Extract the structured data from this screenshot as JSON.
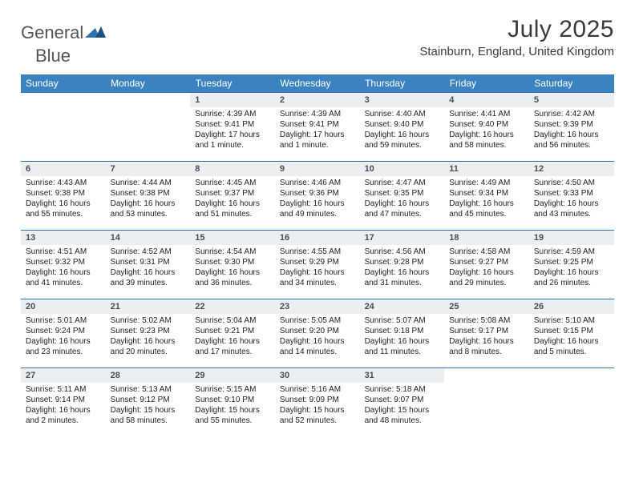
{
  "brand": {
    "name1": "General",
    "name2": "Blue"
  },
  "title": "July 2025",
  "location": "Stainburn, England, United Kingdom",
  "colors": {
    "header_bg": "#3b83c0",
    "header_text": "#ffffff",
    "daynum_bg": "#eceff2",
    "daynum_text": "#454f58",
    "rule": "#2e74b5",
    "body_text": "#222222",
    "page_bg": "#ffffff"
  },
  "font": {
    "family": "Arial",
    "title_size": 30,
    "location_size": 15,
    "header_size": 12,
    "daynum_size": 11,
    "body_size": 10
  },
  "days_of_week": [
    "Sunday",
    "Monday",
    "Tuesday",
    "Wednesday",
    "Thursday",
    "Friday",
    "Saturday"
  ],
  "weeks": [
    [
      null,
      null,
      {
        "n": "1",
        "sr": "4:39 AM",
        "ss": "9:41 PM",
        "dl": "17 hours and 1 minute."
      },
      {
        "n": "2",
        "sr": "4:39 AM",
        "ss": "9:41 PM",
        "dl": "17 hours and 1 minute."
      },
      {
        "n": "3",
        "sr": "4:40 AM",
        "ss": "9:40 PM",
        "dl": "16 hours and 59 minutes."
      },
      {
        "n": "4",
        "sr": "4:41 AM",
        "ss": "9:40 PM",
        "dl": "16 hours and 58 minutes."
      },
      {
        "n": "5",
        "sr": "4:42 AM",
        "ss": "9:39 PM",
        "dl": "16 hours and 56 minutes."
      }
    ],
    [
      {
        "n": "6",
        "sr": "4:43 AM",
        "ss": "9:38 PM",
        "dl": "16 hours and 55 minutes."
      },
      {
        "n": "7",
        "sr": "4:44 AM",
        "ss": "9:38 PM",
        "dl": "16 hours and 53 minutes."
      },
      {
        "n": "8",
        "sr": "4:45 AM",
        "ss": "9:37 PM",
        "dl": "16 hours and 51 minutes."
      },
      {
        "n": "9",
        "sr": "4:46 AM",
        "ss": "9:36 PM",
        "dl": "16 hours and 49 minutes."
      },
      {
        "n": "10",
        "sr": "4:47 AM",
        "ss": "9:35 PM",
        "dl": "16 hours and 47 minutes."
      },
      {
        "n": "11",
        "sr": "4:49 AM",
        "ss": "9:34 PM",
        "dl": "16 hours and 45 minutes."
      },
      {
        "n": "12",
        "sr": "4:50 AM",
        "ss": "9:33 PM",
        "dl": "16 hours and 43 minutes."
      }
    ],
    [
      {
        "n": "13",
        "sr": "4:51 AM",
        "ss": "9:32 PM",
        "dl": "16 hours and 41 minutes."
      },
      {
        "n": "14",
        "sr": "4:52 AM",
        "ss": "9:31 PM",
        "dl": "16 hours and 39 minutes."
      },
      {
        "n": "15",
        "sr": "4:54 AM",
        "ss": "9:30 PM",
        "dl": "16 hours and 36 minutes."
      },
      {
        "n": "16",
        "sr": "4:55 AM",
        "ss": "9:29 PM",
        "dl": "16 hours and 34 minutes."
      },
      {
        "n": "17",
        "sr": "4:56 AM",
        "ss": "9:28 PM",
        "dl": "16 hours and 31 minutes."
      },
      {
        "n": "18",
        "sr": "4:58 AM",
        "ss": "9:27 PM",
        "dl": "16 hours and 29 minutes."
      },
      {
        "n": "19",
        "sr": "4:59 AM",
        "ss": "9:25 PM",
        "dl": "16 hours and 26 minutes."
      }
    ],
    [
      {
        "n": "20",
        "sr": "5:01 AM",
        "ss": "9:24 PM",
        "dl": "16 hours and 23 minutes."
      },
      {
        "n": "21",
        "sr": "5:02 AM",
        "ss": "9:23 PM",
        "dl": "16 hours and 20 minutes."
      },
      {
        "n": "22",
        "sr": "5:04 AM",
        "ss": "9:21 PM",
        "dl": "16 hours and 17 minutes."
      },
      {
        "n": "23",
        "sr": "5:05 AM",
        "ss": "9:20 PM",
        "dl": "16 hours and 14 minutes."
      },
      {
        "n": "24",
        "sr": "5:07 AM",
        "ss": "9:18 PM",
        "dl": "16 hours and 11 minutes."
      },
      {
        "n": "25",
        "sr": "5:08 AM",
        "ss": "9:17 PM",
        "dl": "16 hours and 8 minutes."
      },
      {
        "n": "26",
        "sr": "5:10 AM",
        "ss": "9:15 PM",
        "dl": "16 hours and 5 minutes."
      }
    ],
    [
      {
        "n": "27",
        "sr": "5:11 AM",
        "ss": "9:14 PM",
        "dl": "16 hours and 2 minutes."
      },
      {
        "n": "28",
        "sr": "5:13 AM",
        "ss": "9:12 PM",
        "dl": "15 hours and 58 minutes."
      },
      {
        "n": "29",
        "sr": "5:15 AM",
        "ss": "9:10 PM",
        "dl": "15 hours and 55 minutes."
      },
      {
        "n": "30",
        "sr": "5:16 AM",
        "ss": "9:09 PM",
        "dl": "15 hours and 52 minutes."
      },
      {
        "n": "31",
        "sr": "5:18 AM",
        "ss": "9:07 PM",
        "dl": "15 hours and 48 minutes."
      },
      null,
      null
    ]
  ],
  "labels": {
    "sunrise": "Sunrise: ",
    "sunset": "Sunset: ",
    "daylight": "Daylight: "
  }
}
